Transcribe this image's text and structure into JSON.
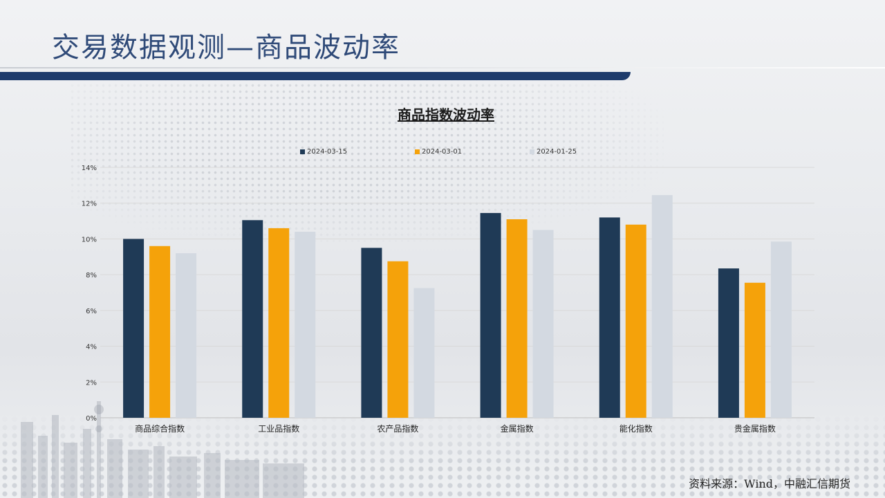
{
  "slide": {
    "title": "交易数据观测—商品波动率",
    "source": "资料来源：Wind，中融汇信期货"
  },
  "chart_data": {
    "type": "bar",
    "title": "商品指数波动率",
    "categories": [
      "商品综合指数",
      "工业品指数",
      "农产品指数",
      "金属指数",
      "能化指数",
      "贵金属指数"
    ],
    "series": [
      {
        "name": "2024-03-15",
        "color": "#1f3a56",
        "values": [
          10.0,
          11.05,
          9.5,
          11.45,
          11.2,
          8.35
        ]
      },
      {
        "name": "2024-03-01",
        "color": "#f5a20a",
        "values": [
          9.6,
          10.6,
          8.75,
          11.1,
          10.8,
          7.55
        ]
      },
      {
        "name": "2024-01-25",
        "color": "#d3d9e1",
        "values": [
          9.2,
          10.4,
          7.25,
          10.5,
          12.45,
          9.85
        ]
      }
    ],
    "yticks": [
      "0%",
      "2%",
      "4%",
      "6%",
      "8%",
      "10%",
      "12%",
      "14%"
    ],
    "ylim": [
      0,
      14
    ],
    "grid": true,
    "legend_position": "top"
  }
}
